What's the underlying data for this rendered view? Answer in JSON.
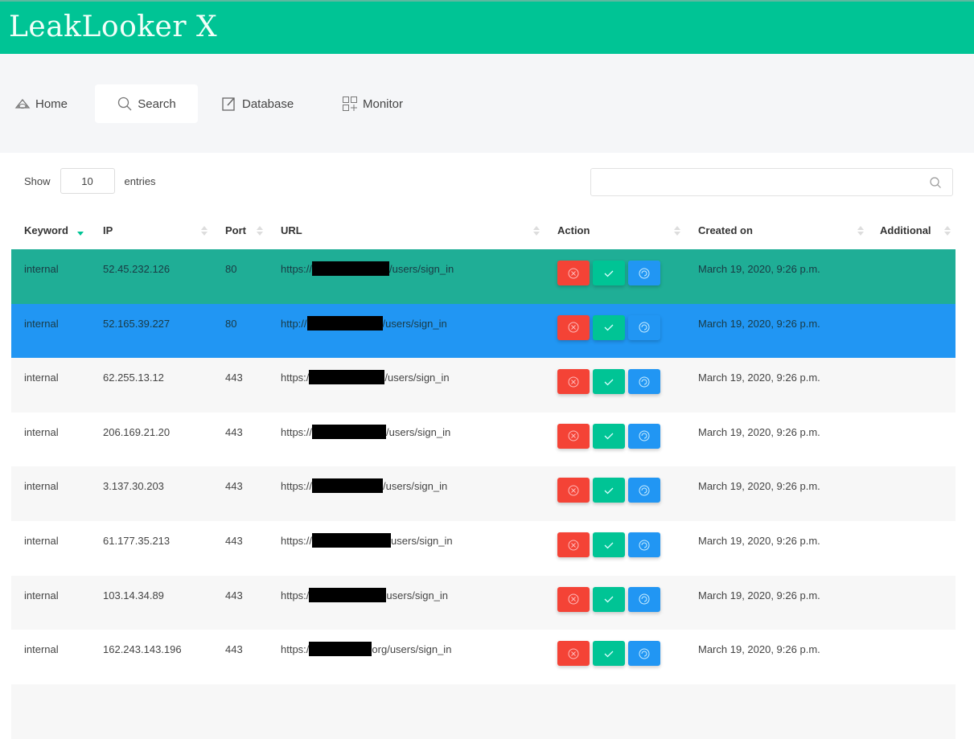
{
  "app": {
    "title": "LeakLooker X",
    "accent": "#00c495"
  },
  "nav": [
    {
      "label": "Home",
      "icon": "home-icon"
    },
    {
      "label": "Search",
      "icon": "search-icon",
      "active": true
    },
    {
      "label": "Database",
      "icon": "edit-icon"
    },
    {
      "label": "Monitor",
      "icon": "grid-plus-icon"
    }
  ],
  "table_controls": {
    "show_label": "Show",
    "entries_value": "10",
    "entries_label": "entries",
    "search_value": ""
  },
  "columns": [
    "Keyword",
    "IP",
    "Port",
    "URL",
    "Action",
    "Created on",
    "Additional"
  ],
  "sorted_column": "Keyword",
  "colors": {
    "danger": "#f44336",
    "success": "#00c495",
    "info": "#2196f3",
    "selected_row_1": "#1fae96",
    "selected_row_2": "#2196f3"
  },
  "rows": [
    {
      "keyword": "internal",
      "ip": "52.45.232.126",
      "port": "80",
      "url_prefix": "https://",
      "url_suffix": "/users/sign_in",
      "created": "March 19, 2020, 9:26 p.m.",
      "additional": ""
    },
    {
      "keyword": "internal",
      "ip": "52.165.39.227",
      "port": "80",
      "url_prefix": "http://",
      "url_suffix": "/users/sign_in",
      "created": "March 19, 2020, 9:26 p.m.",
      "additional": ""
    },
    {
      "keyword": "internal",
      "ip": "62.255.13.12",
      "port": "443",
      "url_prefix": "https:/",
      "url_suffix": "/users/sign_in",
      "created": "March 19, 2020, 9:26 p.m.",
      "additional": ""
    },
    {
      "keyword": "internal",
      "ip": "206.169.21.20",
      "port": "443",
      "url_prefix": "https://",
      "url_suffix": "/users/sign_in",
      "created": "March 19, 2020, 9:26 p.m.",
      "additional": ""
    },
    {
      "keyword": "internal",
      "ip": "3.137.30.203",
      "port": "443",
      "url_prefix": "https://",
      "url_suffix": "/users/sign_in",
      "created": "March 19, 2020, 9:26 p.m.",
      "additional": ""
    },
    {
      "keyword": "internal",
      "ip": "61.177.35.213",
      "port": "443",
      "url_prefix": "https://",
      "url_suffix": "users/sign_in",
      "created": "March 19, 2020, 9:26 p.m.",
      "additional": ""
    },
    {
      "keyword": "internal",
      "ip": "103.14.34.89",
      "port": "443",
      "url_prefix": "https:/",
      "url_suffix": "users/sign_in",
      "created": "March 19, 2020, 9:26 p.m.",
      "additional": ""
    },
    {
      "keyword": "internal",
      "ip": "162.243.143.196",
      "port": "443",
      "url_prefix": "https:/",
      "url_suffix": "org/users/sign_in",
      "created": "March 19, 2020, 9:26 p.m.",
      "additional": ""
    }
  ]
}
